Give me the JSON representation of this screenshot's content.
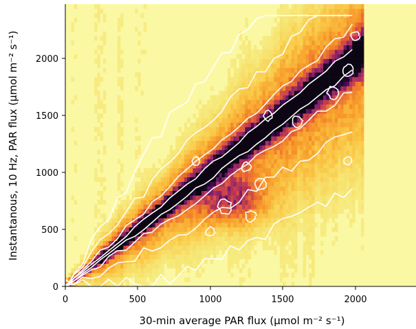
{
  "chart_data": {
    "type": "heatmap",
    "title": "",
    "xlabel": "30-min average PAR flux (μmol m⁻² s⁻¹)",
    "ylabel": "Instantanous, 10 Hz, PAR flux (μmol m⁻² s⁻¹)",
    "xlim": [
      0,
      2420
    ],
    "ylim": [
      0,
      2480
    ],
    "x_ticks": [
      "0",
      "500",
      "1000",
      "1500",
      "2000"
    ],
    "y_ticks": [
      "0",
      "500",
      "1000",
      "1500",
      "2000"
    ],
    "x_tick_values": [
      0,
      500,
      1000,
      1500,
      2000
    ],
    "y_tick_values": [
      0,
      500,
      1000,
      1500,
      2000
    ],
    "colormap": "inferno_r",
    "background_color": "#fbf8a4",
    "contour_color": "#ffffff",
    "grid": false,
    "legend": "none",
    "density_ridge": {
      "description_of_shape": "dense band along y = x with a secondary lobe below the diagonal",
      "x": [
        0,
        300,
        600,
        900,
        1200,
        1500,
        1800,
        2000
      ],
      "y": [
        0,
        300,
        600,
        900,
        1200,
        1500,
        1800,
        2000
      ]
    },
    "contour_levels": 4
  }
}
